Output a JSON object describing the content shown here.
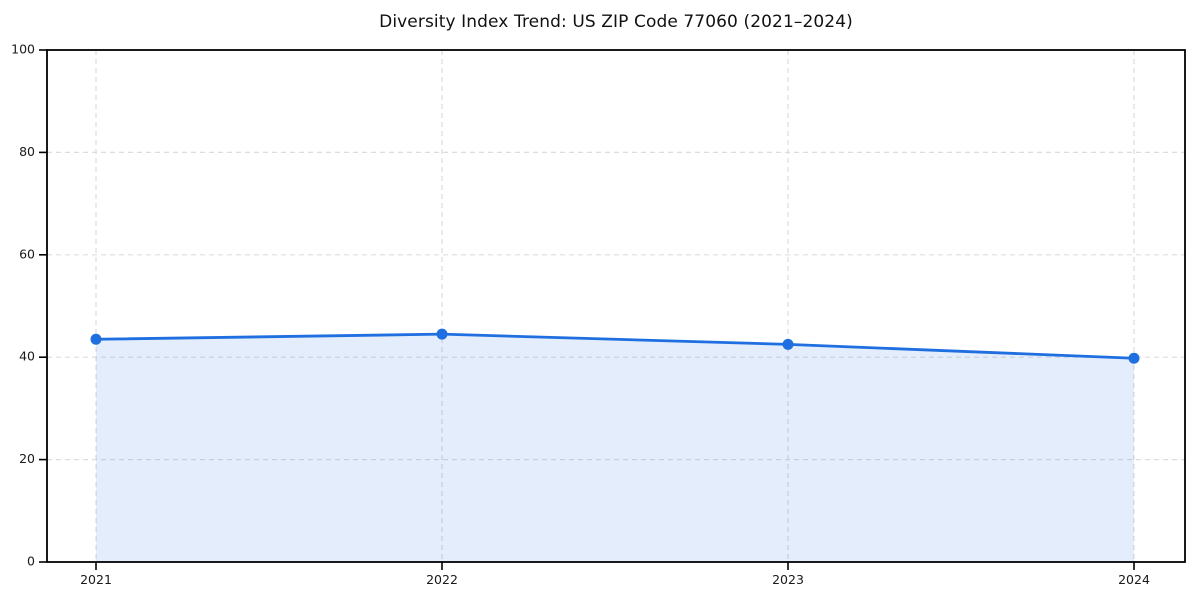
{
  "chart_data": {
    "type": "line",
    "title": "Diversity Index Trend: US ZIP Code 77060 (2021–2024)",
    "xlabel": "",
    "ylabel": "",
    "x_labels": [
      "2021",
      "2022",
      "2023",
      "2024"
    ],
    "series": [
      {
        "name": "Diversity Index",
        "values": [
          43.5,
          44.5,
          42.5,
          39.8
        ]
      }
    ],
    "ylim": [
      0,
      100
    ],
    "yticks": [
      0,
      20,
      40,
      60,
      80,
      100
    ],
    "grid": true,
    "grid_style": "dashed",
    "legend_position": "none",
    "area_fill": true,
    "marker": "circle",
    "colors": {
      "line": "#1f6fe1",
      "marker": "#1f6fe1",
      "area": "#1f6fe1",
      "area_opacity": 0.12,
      "grid": "#dddddd",
      "axis": "#000000",
      "tick_text": "#1a1a1a",
      "background": "#ffffff"
    }
  }
}
